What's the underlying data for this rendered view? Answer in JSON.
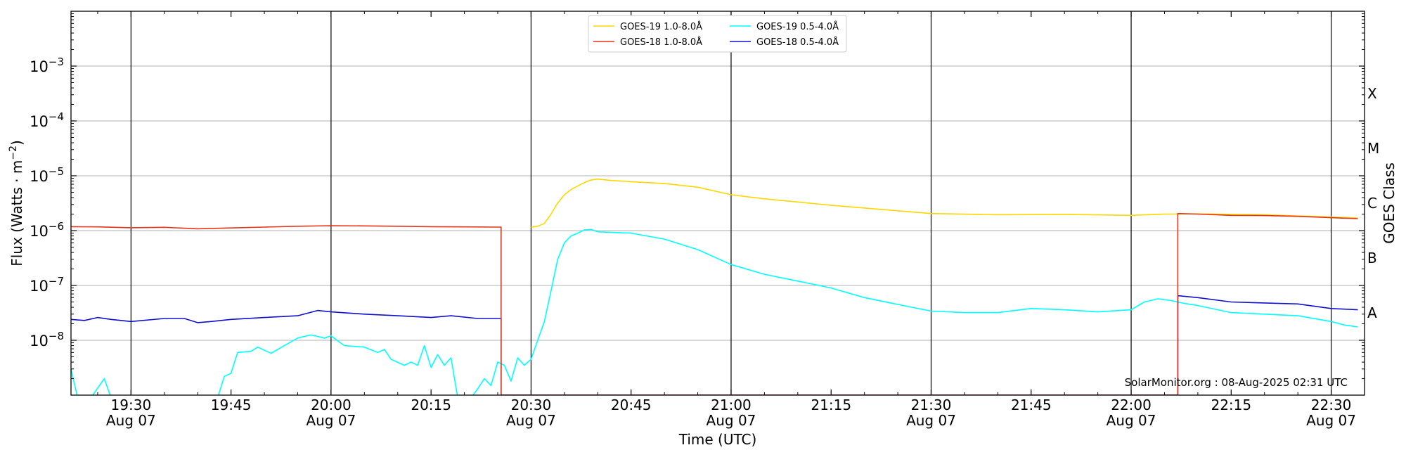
{
  "chart_data": {
    "type": "line",
    "xlabel": "Time (UTC)",
    "ylabel_main": "Flux (Watts · m",
    "ylabel_exp": "−2",
    "ylabel_close": ")",
    "right_label": "GOES Class",
    "scale": "log",
    "ylim": [
      "1e-9",
      "1e-2"
    ],
    "xlim": [
      "19:21",
      "22:35"
    ],
    "grid": "horizontal at decades, vertical at major times",
    "legend_placement": "top-center",
    "annotation": "SolarMonitor.org : 08-Aug-2025 02:31 UTC",
    "x_ticks": [
      {
        "t": "19:30",
        "date": "Aug 07"
      },
      {
        "t": "19:45",
        "date": ""
      },
      {
        "t": "20:00",
        "date": "Aug 07"
      },
      {
        "t": "20:15",
        "date": ""
      },
      {
        "t": "20:30",
        "date": "Aug 07"
      },
      {
        "t": "20:45",
        "date": ""
      },
      {
        "t": "21:00",
        "date": "Aug 07"
      },
      {
        "t": "21:15",
        "date": ""
      },
      {
        "t": "21:30",
        "date": "Aug 07"
      },
      {
        "t": "21:45",
        "date": ""
      },
      {
        "t": "22:00",
        "date": "Aug 07"
      },
      {
        "t": "22:15",
        "date": ""
      },
      {
        "t": "22:30",
        "date": "Aug 07"
      }
    ],
    "y_ticks": [
      {
        "v": "1e-3",
        "base": "10",
        "exp": "−3"
      },
      {
        "v": "1e-4",
        "base": "10",
        "exp": "−4"
      },
      {
        "v": "1e-5",
        "base": "10",
        "exp": "−5"
      },
      {
        "v": "1e-6",
        "base": "10",
        "exp": "−6"
      },
      {
        "v": "1e-7",
        "base": "10",
        "exp": "−7"
      },
      {
        "v": "1e-8",
        "base": "10",
        "exp": "−8"
      }
    ],
    "goes_classes": [
      {
        "label": "X",
        "center": "3.16e-4"
      },
      {
        "label": "M",
        "center": "3.16e-5"
      },
      {
        "label": "C",
        "center": "3.16e-6"
      },
      {
        "label": "B",
        "center": "3.16e-7"
      },
      {
        "label": "A",
        "center": "3.16e-8"
      }
    ],
    "series": [
      {
        "name": "GOES-19 1.0-8.0Å",
        "color": "#FFD700",
        "points": [
          [
            "20:30",
            "1.15e-6"
          ],
          [
            "20:31",
            "1.2e-6"
          ],
          [
            "20:32",
            "1.35e-6"
          ],
          [
            "20:33",
            "2e-6"
          ],
          [
            "20:34",
            "3.2e-6"
          ],
          [
            "20:35",
            "4.5e-6"
          ],
          [
            "20:36",
            "5.6e-6"
          ],
          [
            "20:37",
            "6.5e-6"
          ],
          [
            "20:38",
            "7.5e-6"
          ],
          [
            "20:39",
            "8.4e-6"
          ],
          [
            "20:40",
            "8.7e-6"
          ],
          [
            "20:42",
            "8.2e-6"
          ],
          [
            "20:45",
            "7.8e-6"
          ],
          [
            "20:50",
            "7.2e-6"
          ],
          [
            "20:55",
            "6.2e-6"
          ],
          [
            "21:00",
            "4.5e-6"
          ],
          [
            "21:05",
            "3.8e-6"
          ],
          [
            "21:15",
            "2.9e-6"
          ],
          [
            "21:25",
            "2.3e-6"
          ],
          [
            "21:30",
            "2.05e-6"
          ],
          [
            "21:40",
            "1.95e-6"
          ],
          [
            "21:50",
            "1.98e-6"
          ],
          [
            "22:00",
            "1.9e-6"
          ],
          [
            "22:05",
            "2e-6"
          ],
          [
            "22:10",
            "2.02e-6"
          ],
          [
            "22:20",
            "1.95e-6"
          ],
          [
            "22:34",
            "1.7e-6"
          ]
        ]
      },
      {
        "name": "GOES-18 1.0-8.0Å",
        "color": "#E4341A",
        "points": [
          [
            "19:21",
            "1.18e-6"
          ],
          [
            "19:25",
            "1.17e-6"
          ],
          [
            "19:30",
            "1.13e-6"
          ],
          [
            "19:35",
            "1.15e-6"
          ],
          [
            "19:40",
            "1.08e-6"
          ],
          [
            "19:45",
            "1.12e-6"
          ],
          [
            "19:50",
            "1.16e-6"
          ],
          [
            "19:55",
            "1.2e-6"
          ],
          [
            "20:00",
            "1.23e-6"
          ],
          [
            "20:05",
            "1.22e-6"
          ],
          [
            "20:10",
            "1.2e-6"
          ],
          [
            "20:15",
            "1.18e-6"
          ],
          [
            "20:20",
            "1.17e-6"
          ],
          [
            "20:25",
            "1.16e-6"
          ],
          [
            "20:25.5",
            "1.16e-6"
          ],
          [
            "20:25.5",
            "1e-9"
          ],
          [
            "22:07",
            "1e-9"
          ],
          [
            "22:07",
            "2.05e-6"
          ],
          [
            "22:10",
            "2e-6"
          ],
          [
            "22:15",
            "1.9e-6"
          ],
          [
            "22:20",
            "1.88e-6"
          ],
          [
            "22:25",
            "1.82e-6"
          ],
          [
            "22:30",
            "1.72e-6"
          ],
          [
            "22:34",
            "1.65e-6"
          ]
        ]
      },
      {
        "name": "GOES-19 0.5-4.0Å",
        "color": "#00FFFF",
        "points": [
          [
            "19:21",
            "3e-9"
          ],
          [
            "19:22",
            "9e-10"
          ],
          [
            "19:24",
            "9e-10"
          ],
          [
            "19:26",
            "2e-9"
          ],
          [
            "19:27",
            "9e-10"
          ],
          [
            "19:43",
            "9e-10"
          ],
          [
            "19:44",
            "2.2e-9"
          ],
          [
            "19:45",
            "2.5e-9"
          ],
          [
            "19:46",
            "6e-9"
          ],
          [
            "19:48",
            "6.3e-9"
          ],
          [
            "19:49",
            "7.5e-9"
          ],
          [
            "19:51",
            "5.8e-9"
          ],
          [
            "19:53",
            "8e-9"
          ],
          [
            "19:55",
            "1.1e-8"
          ],
          [
            "19:57",
            "1.25e-8"
          ],
          [
            "19:59",
            "1.1e-8"
          ],
          [
            "20:00",
            "1.2e-8"
          ],
          [
            "20:02",
            "8e-9"
          ],
          [
            "20:05",
            "7.5e-9"
          ],
          [
            "20:07",
            "6e-9"
          ],
          [
            "20:08",
            "6.8e-9"
          ],
          [
            "20:09",
            "4.5e-9"
          ],
          [
            "20:11",
            "3.5e-9"
          ],
          [
            "20:12",
            "4e-9"
          ],
          [
            "20:13",
            "3.5e-9"
          ],
          [
            "20:14",
            "8e-9"
          ],
          [
            "20:15",
            "3.2e-9"
          ],
          [
            "20:16",
            "5.5e-9"
          ],
          [
            "20:17",
            "3.5e-9"
          ],
          [
            "20:18",
            "4.8e-9"
          ],
          [
            "20:19",
            "9e-10"
          ],
          [
            "20:21",
            "9e-10"
          ],
          [
            "20:22",
            "1.3e-9"
          ],
          [
            "20:23",
            "2e-9"
          ],
          [
            "20:24",
            "1.5e-9"
          ],
          [
            "20:25",
            "4e-9"
          ],
          [
            "20:26",
            "3.5e-9"
          ],
          [
            "20:27",
            "1.8e-9"
          ],
          [
            "20:28",
            "4.8e-9"
          ],
          [
            "20:29",
            "3.5e-9"
          ],
          [
            "20:30",
            "4.5e-9"
          ],
          [
            "20:31",
            "1e-8"
          ],
          [
            "20:32",
            "2.2e-8"
          ],
          [
            "20:33",
            "8e-8"
          ],
          [
            "20:34",
            "3e-7"
          ],
          [
            "20:35",
            "6e-7"
          ],
          [
            "20:36",
            "8e-7"
          ],
          [
            "20:37",
            "9e-7"
          ],
          [
            "20:38",
            "1.03e-6"
          ],
          [
            "20:39",
            "1.05e-6"
          ],
          [
            "20:40",
            "9.5e-7"
          ],
          [
            "20:45",
            "9e-7"
          ],
          [
            "20:50",
            "7e-7"
          ],
          [
            "20:55",
            "4.5e-7"
          ],
          [
            "21:00",
            "2.4e-7"
          ],
          [
            "21:05",
            "1.6e-7"
          ],
          [
            "21:10",
            "1.2e-7"
          ],
          [
            "21:15",
            "9e-8"
          ],
          [
            "21:20",
            "6e-8"
          ],
          [
            "21:25",
            "4.5e-8"
          ],
          [
            "21:30",
            "3.4e-8"
          ],
          [
            "21:35",
            "3.2e-8"
          ],
          [
            "21:40",
            "3.2e-8"
          ],
          [
            "21:45",
            "3.8e-8"
          ],
          [
            "21:50",
            "3.6e-8"
          ],
          [
            "21:55",
            "3.3e-8"
          ],
          [
            "22:00",
            "3.6e-8"
          ],
          [
            "22:02",
            "5e-8"
          ],
          [
            "22:04",
            "5.7e-8"
          ],
          [
            "22:06",
            "5.3e-8"
          ],
          [
            "22:08",
            "4.7e-8"
          ],
          [
            "22:10",
            "4.3e-8"
          ],
          [
            "22:15",
            "3.2e-8"
          ],
          [
            "22:20",
            "3e-8"
          ],
          [
            "22:25",
            "2.8e-8"
          ],
          [
            "22:30",
            "2.2e-8"
          ],
          [
            "22:32",
            "1.9e-8"
          ],
          [
            "22:34",
            "1.75e-8"
          ]
        ]
      },
      {
        "name": "GOES-18 0.5-4.0Å",
        "color": "#1010CC",
        "points": [
          [
            "19:21",
            "2.4e-8"
          ],
          [
            "19:23",
            "2.3e-8"
          ],
          [
            "19:25",
            "2.6e-8"
          ],
          [
            "19:27",
            "2.4e-8"
          ],
          [
            "19:30",
            "2.2e-8"
          ],
          [
            "19:35",
            "2.5e-8"
          ],
          [
            "19:38",
            "2.5e-8"
          ],
          [
            "19:40",
            "2.1e-8"
          ],
          [
            "19:42",
            "2.2e-8"
          ],
          [
            "19:45",
            "2.4e-8"
          ],
          [
            "19:50",
            "2.6e-8"
          ],
          [
            "19:55",
            "2.8e-8"
          ],
          [
            "19:58",
            "3.5e-8"
          ],
          [
            "20:00",
            "3.3e-8"
          ],
          [
            "20:05",
            "3e-8"
          ],
          [
            "20:10",
            "2.8e-8"
          ],
          [
            "20:15",
            "2.6e-8"
          ],
          [
            "20:18",
            "2.8e-8"
          ],
          [
            "20:22",
            "2.5e-8"
          ],
          [
            "20:25",
            "2.5e-8"
          ],
          [
            "20:25.5",
            "2.5e-8"
          ],
          [
            "20:25.5",
            "1e-9"
          ],
          [
            "22:07",
            "1e-9"
          ],
          [
            "22:07",
            "6.5e-8"
          ],
          [
            "22:10",
            "6e-8"
          ],
          [
            "22:15",
            "5e-8"
          ],
          [
            "22:20",
            "4.8e-8"
          ],
          [
            "22:25",
            "4.6e-8"
          ],
          [
            "22:30",
            "3.8e-8"
          ],
          [
            "22:34",
            "3.6e-8"
          ]
        ]
      }
    ]
  }
}
